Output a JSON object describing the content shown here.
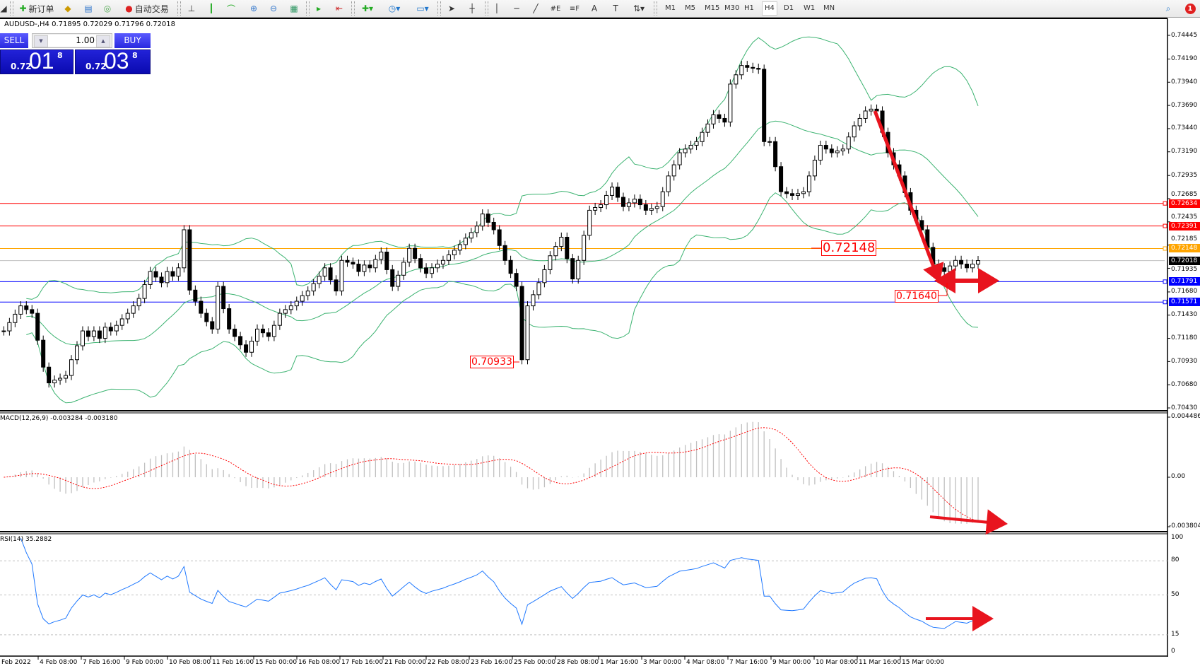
{
  "toolbar": {
    "new_order": "新订单",
    "auto_trading": "自动交易",
    "timeframes": [
      "M1",
      "M5",
      "M15",
      "M30",
      "H1",
      "H4",
      "D1",
      "W1",
      "MN"
    ],
    "active_timeframe": "H4"
  },
  "notifications": {
    "count": "1"
  },
  "chart": {
    "symbol_info": "AUDUSD-,H4  0.71895 0.72029 0.71796 0.72018"
  },
  "trade_panel": {
    "sell_label": "SELL",
    "buy_label": "BUY",
    "volume": "1.00",
    "sell_price": {
      "prefix": "0.72",
      "big": "01",
      "sup": "8"
    },
    "buy_price": {
      "prefix": "0.72",
      "big": "03",
      "sup": "8"
    }
  },
  "indicators": {
    "macd_label": "MACD(12,26,9) -0.003284 -0.003180",
    "rsi_label": "RSI(14) 35.2882"
  },
  "price_axis": [
    "0.74445",
    "0.74190",
    "0.73940",
    "0.73690",
    "0.73440",
    "0.73190",
    "0.72935",
    "0.72685",
    "0.72435",
    "0.72185",
    "0.71935",
    "0.71680",
    "0.71430",
    "0.71180",
    "0.70930",
    "0.70680",
    "0.70430"
  ],
  "price_levels": [
    {
      "value": "0.72634",
      "color": "#ff0000"
    },
    {
      "value": "0.72391",
      "color": "#ff0000"
    },
    {
      "value": "0.72148",
      "color": "#ffa500"
    },
    {
      "value": "0.72018",
      "color": "#000000",
      "line_color": "#c0c0c0"
    },
    {
      "value": "0.71791",
      "color": "#0000ff"
    },
    {
      "value": "0.71571",
      "color": "#0000ff"
    }
  ],
  "annotations": {
    "level_a": "0.72148",
    "level_b": "0.71640",
    "low": "0.70933"
  },
  "macd_axis": [
    "0.004486",
    "0.00",
    "-0.003804"
  ],
  "rsi_axis": [
    "100",
    "80",
    "50",
    "15",
    "0"
  ],
  "time_axis": [
    "Feb 2022",
    "4 Feb 08:00",
    "7 Feb 16:00",
    "9 Feb 00:00",
    "10 Feb 08:00",
    "11 Feb 16:00",
    "15 Feb 00:00",
    "16 Feb 08:00",
    "17 Feb 16:00",
    "21 Feb 00:00",
    "22 Feb 08:00",
    "23 Feb 16:00",
    "25 Feb 00:00",
    "28 Feb 08:00",
    "1 Mar 16:00",
    "3 Mar 00:00",
    "4 Mar 08:00",
    "7 Mar 16:00",
    "9 Mar 00:00",
    "10 Mar 08:00",
    "11 Mar 16:00",
    "15 Mar 00:00"
  ],
  "chart_data": {
    "type": "candlestick",
    "symbol": "AUDUSD-",
    "timeframe": "H4",
    "ylim": [
      0.7043,
      0.74445
    ],
    "closes": [
      0.7126,
      0.7135,
      0.7144,
      0.7153,
      0.7149,
      0.7145,
      0.7116,
      0.7087,
      0.707,
      0.7073,
      0.7075,
      0.7078,
      0.7095,
      0.711,
      0.7126,
      0.712,
      0.7126,
      0.7118,
      0.713,
      0.7126,
      0.7132,
      0.7139,
      0.7145,
      0.7153,
      0.7161,
      0.7176,
      0.719,
      0.7184,
      0.7178,
      0.719,
      0.7185,
      0.7194,
      0.7235,
      0.717,
      0.7158,
      0.7145,
      0.7136,
      0.7128,
      0.7174,
      0.715,
      0.7128,
      0.712,
      0.7111,
      0.7103,
      0.7115,
      0.7128,
      0.7124,
      0.712,
      0.7132,
      0.7145,
      0.7149,
      0.7153,
      0.7158,
      0.7164,
      0.7169,
      0.7177,
      0.7185,
      0.7194,
      0.7181,
      0.7169,
      0.7202,
      0.72,
      0.7198,
      0.719,
      0.7197,
      0.7194,
      0.7203,
      0.7211,
      0.7192,
      0.7174,
      0.7186,
      0.72,
      0.7215,
      0.7204,
      0.7194,
      0.7188,
      0.7194,
      0.7198,
      0.7202,
      0.7208,
      0.7213,
      0.7219,
      0.7226,
      0.7232,
      0.7239,
      0.7252,
      0.7243,
      0.7235,
      0.7218,
      0.7202,
      0.7188,
      0.7174,
      0.7095,
      0.7153,
      0.7165,
      0.7178,
      0.7192,
      0.7207,
      0.7217,
      0.7227,
      0.7204,
      0.7182,
      0.7202,
      0.7229,
      0.7256,
      0.7259,
      0.7262,
      0.7272,
      0.7281,
      0.727,
      0.726,
      0.7264,
      0.7268,
      0.7262,
      0.7256,
      0.7258,
      0.726,
      0.7276,
      0.7293,
      0.7305,
      0.7318,
      0.7322,
      0.7326,
      0.733,
      0.734,
      0.7349,
      0.7359,
      0.7355,
      0.7351,
      0.7392,
      0.7402,
      0.7412,
      0.741,
      0.7409,
      0.7408,
      0.733,
      0.733,
      0.7303,
      0.7276,
      0.7274,
      0.7272,
      0.7274,
      0.7276,
      0.7293,
      0.731,
      0.7326,
      0.7322,
      0.7318,
      0.732,
      0.7322,
      0.7335,
      0.7347,
      0.7355,
      0.7363,
      0.7365,
      0.7363,
      0.734,
      0.7318,
      0.7305,
      0.7293,
      0.7275,
      0.7256,
      0.7245,
      0.7235,
      0.7216,
      0.7198,
      0.7194,
      0.719,
      0.7196,
      0.7202,
      0.7198,
      0.7194,
      0.7198,
      0.72018
    ],
    "bollinger": {
      "period": 20,
      "deviation": 2,
      "color": "#3cb371"
    },
    "macd": {
      "fast": 12,
      "slow": 26,
      "signal": 9,
      "ylim": [
        -0.003804,
        0.004486
      ],
      "histogram_color": "#c0c0c0",
      "signal_color": "#ff0000"
    },
    "rsi": {
      "period": 14,
      "ylim": [
        0,
        100
      ],
      "levels": [
        80,
        50,
        15
      ],
      "color": "#1e78ff"
    },
    "arrow_color": "#e8141e"
  }
}
